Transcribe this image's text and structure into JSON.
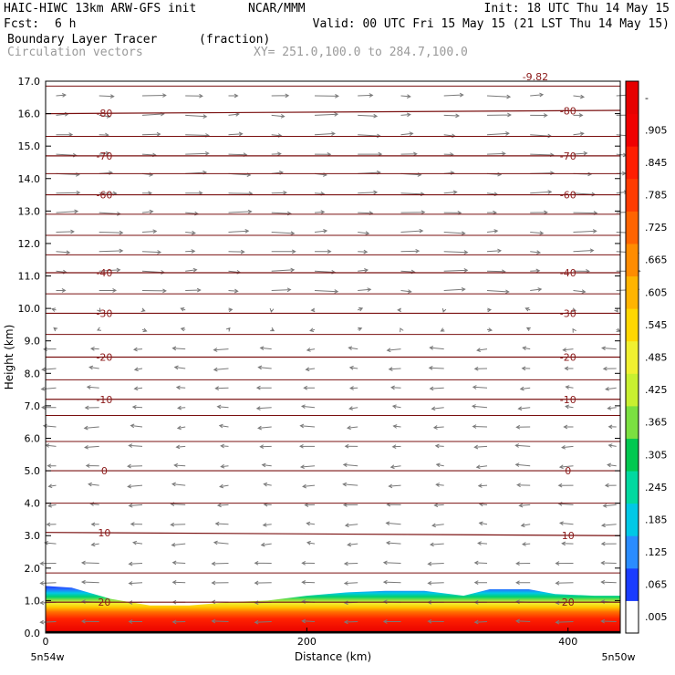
{
  "header": {
    "title_left": "HAIC-HIWC 13km ARW-GFS init",
    "org": "NCAR/MMM",
    "init": "Init: 18 UTC Thu 14 May 15",
    "fcst_label": "Fcst:",
    "fcst_value": "6 h",
    "valid": "Valid: 00 UTC Fri 15 May 15 (21 LST Thu 14 May 15)",
    "field_name": "Boundary Layer Tracer",
    "field_units": "(fraction)",
    "vector_label": "Circulation vectors",
    "xy_range": "XY= 251.0,100.0 to 284.7,100.0"
  },
  "chart_data": {
    "type": "heatmap",
    "xlabel": "Distance (km)",
    "ylabel": "Height (km)",
    "xlim": [
      0,
      440
    ],
    "ylim": [
      0,
      17
    ],
    "x_ticks": [
      0,
      200,
      400
    ],
    "y_ticks": [
      "0.0",
      "1.0",
      "2.0",
      "3.0",
      "4.0",
      "5.0",
      "6.0",
      "7.0",
      "8.0",
      "9.0",
      "10.0",
      "11.0",
      "12.0",
      "13.0",
      "14.0",
      "15.0",
      "16.0",
      "17.0"
    ],
    "x_end_labels": [
      "5n54w",
      "5n50w"
    ],
    "colorbar_ticks": [
      ".005",
      ".065",
      ".125",
      ".185",
      ".245",
      ".305",
      ".365",
      ".425",
      ".485",
      ".545",
      ".605",
      ".665",
      ".725",
      ".785",
      ".845",
      ".905",
      "-"
    ],
    "colorbar_colors": [
      "#ffffff",
      "#1a3cff",
      "#2a8cff",
      "#00c8e6",
      "#00d9a0",
      "#00c850",
      "#7be040",
      "#c8f030",
      "#f0f030",
      "#ffd700",
      "#ffb400",
      "#ff8c00",
      "#ff6400",
      "#ff3c00",
      "#ff1e00",
      "#f00000",
      "#e60000"
    ],
    "tracer_top_km": [
      [
        0,
        1.45
      ],
      [
        20,
        1.4
      ],
      [
        50,
        1.05
      ],
      [
        80,
        0.85
      ],
      [
        110,
        0.85
      ],
      [
        140,
        0.95
      ],
      [
        170,
        1.0
      ],
      [
        200,
        1.15
      ],
      [
        230,
        1.25
      ],
      [
        260,
        1.3
      ],
      [
        290,
        1.3
      ],
      [
        320,
        1.15
      ],
      [
        340,
        1.35
      ],
      [
        370,
        1.35
      ],
      [
        390,
        1.2
      ],
      [
        420,
        1.15
      ],
      [
        440,
        1.15
      ]
    ],
    "temperature_contours": [
      {
        "label": "-80",
        "left_label": "-80",
        "right_label": "-80",
        "z_left": 16.0,
        "z_right": 16.1
      },
      {
        "label": "-70",
        "left_label": "-70",
        "right_label": "-70",
        "z_left": 14.7,
        "z_right": 14.7
      },
      {
        "label": "-60",
        "left_label": "-60",
        "right_label": "-60",
        "z_left": 13.5,
        "z_right": 13.5
      },
      {
        "label": "-40",
        "left_label": "-40",
        "right_label": "-40",
        "z_left": 11.1,
        "z_right": 11.1
      },
      {
        "label": "-30",
        "left_label": "-30",
        "right_label": "-30",
        "z_left": 9.85,
        "z_right": 9.85
      },
      {
        "label": "-20",
        "left_label": "-20",
        "right_label": "-20",
        "z_left": 8.5,
        "z_right": 8.5
      },
      {
        "label": "-10",
        "left_label": "-10",
        "right_label": "-10",
        "z_left": 7.2,
        "z_right": 7.2
      },
      {
        "label": "0",
        "left_label": "0",
        "right_label": "0",
        "z_left": 5.0,
        "z_right": 5.0
      },
      {
        "label": "10",
        "left_label": "10",
        "right_label": "10",
        "z_left": 3.1,
        "z_right": 3.0
      },
      {
        "label": "20",
        "left_label": "20",
        "right_label": "20",
        "z_left": 0.95,
        "z_right": 0.95
      }
    ],
    "top_edge_label": "-9.82"
  }
}
